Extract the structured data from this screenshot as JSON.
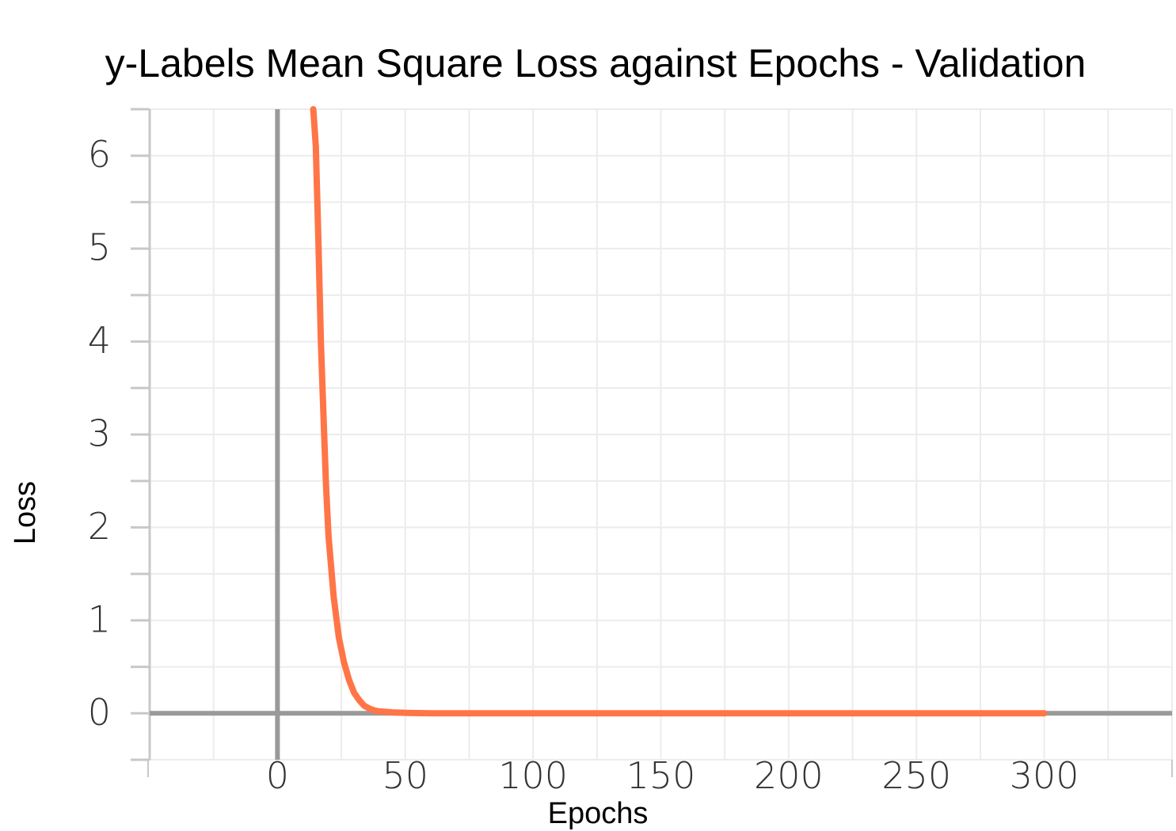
{
  "chart_data": {
    "type": "line",
    "title": "y-Labels Mean Square Loss against Epochs - Validation",
    "xlabel": "Epochs",
    "ylabel": "Loss",
    "xlim": [
      -50,
      350
    ],
    "ylim": [
      -0.5,
      6.5
    ],
    "x_ticks": [
      0,
      50,
      100,
      150,
      200,
      250,
      300
    ],
    "x_tick_labels": [
      "0",
      "50",
      "100",
      "150",
      "200",
      "250",
      "300"
    ],
    "y_ticks": [
      0,
      1,
      2,
      3,
      4,
      5,
      6
    ],
    "y_tick_labels": [
      "0",
      "1",
      "2",
      "3",
      "4",
      "5",
      "6"
    ],
    "grid": true,
    "zero_lines": true,
    "series": [
      {
        "color": "#ff7547",
        "x": [
          14,
          15,
          16,
          17,
          18,
          19,
          20,
          22,
          24,
          26,
          28,
          30,
          32,
          34,
          36,
          38,
          40,
          45,
          50,
          60,
          80,
          100,
          150,
          200,
          250,
          300
        ],
        "y": [
          6.5,
          6.1,
          5.1,
          4.0,
          3.2,
          2.45,
          1.9,
          1.25,
          0.82,
          0.55,
          0.36,
          0.22,
          0.14,
          0.08,
          0.05,
          0.03,
          0.02,
          0.01,
          0.005,
          0.0,
          0.0,
          0.0,
          0.0,
          0.0,
          0.0,
          0.0
        ]
      }
    ]
  }
}
